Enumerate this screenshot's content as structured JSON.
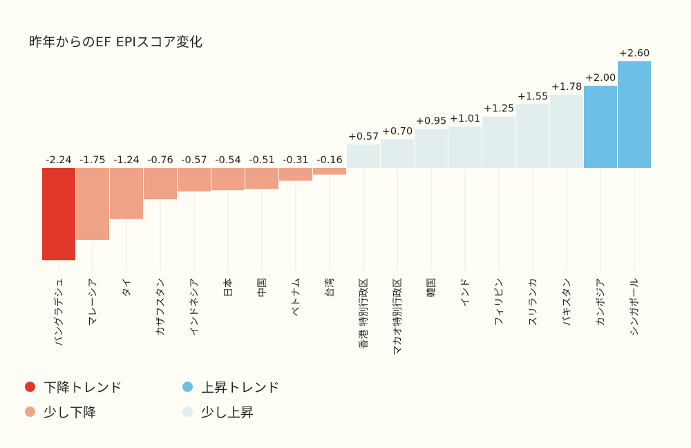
{
  "chart_data": {
    "type": "bar",
    "title": "昨年からのEF EPIスコア変化",
    "categories": [
      "バングラデシュ",
      "マレーシア",
      "タイ",
      "カザフスタン",
      "インドネシア",
      "日本",
      "中国",
      "ベトナム",
      "台湾",
      "香港 特別行政区",
      "マカオ特別行政区",
      "韓国",
      "インド",
      "フィリピン",
      "スリランカ",
      "パキスタン",
      "カンボジア",
      "シンガポール"
    ],
    "values": [
      -2.24,
      -1.75,
      -1.24,
      -0.76,
      -0.57,
      -0.54,
      -0.51,
      -0.31,
      -0.16,
      0.57,
      0.7,
      0.95,
      1.01,
      1.25,
      1.55,
      1.78,
      2.0,
      2.6
    ],
    "labels": [
      "-2.24",
      "-1.75",
      "-1.24",
      "-0.76",
      "-0.57",
      "-0.54",
      "-0.51",
      "-0.31",
      "-0.16",
      "+0.57",
      "+0.70",
      "+0.95",
      "+1.01",
      "+1.25",
      "+1.55",
      "+1.78",
      "+2.00",
      "+2.60"
    ],
    "categories_class": [
      "down-trend",
      "slight-down",
      "slight-down",
      "slight-down",
      "slight-down",
      "slight-down",
      "slight-down",
      "slight-down",
      "slight-down",
      "slight-up",
      "slight-up",
      "slight-up",
      "slight-up",
      "slight-up",
      "slight-up",
      "slight-up",
      "up-trend",
      "up-trend"
    ],
    "xlabel": "",
    "ylabel": "",
    "ylim": [
      -2.24,
      2.6
    ],
    "grid": false,
    "legend_position": "bottom-left",
    "legend": [
      {
        "key": "down-trend",
        "label": "下降トレンド",
        "color": "#e0392b"
      },
      {
        "key": "up-trend",
        "label": "上昇トレンド",
        "color": "#6dbfe6"
      },
      {
        "key": "slight-down",
        "label": "少し下降",
        "color": "#efa387"
      },
      {
        "key": "slight-up",
        "label": "少し上昇",
        "color": "#e2eeee"
      }
    ]
  },
  "colors": {
    "down-trend": "#e0392b",
    "slight-down": "#efa387",
    "slight-up": "#e2eeee",
    "up-trend": "#6dbfe6",
    "text": "#231f20",
    "tick": "#ebebe3"
  }
}
